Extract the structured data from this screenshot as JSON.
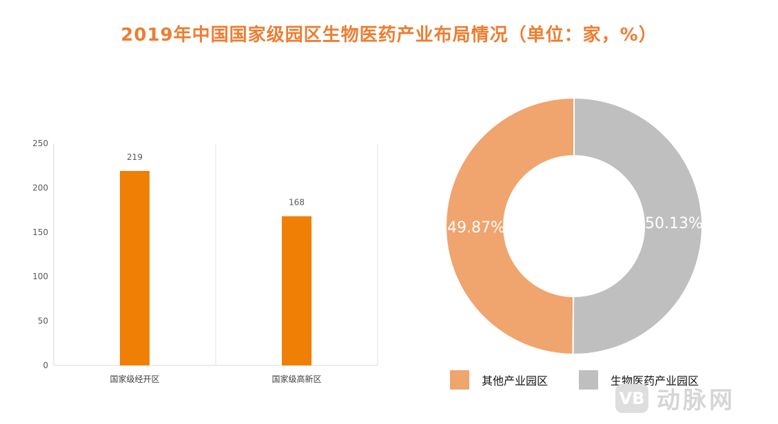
{
  "title": "2019年中国国家级园区生物医药产业布局情况（单位：家，%）",
  "colors": {
    "title": "#ED7D31",
    "bar": "#F07F06",
    "slice_other": "#F0A46E",
    "slice_bio": "#BFBFBF"
  },
  "chart_data": [
    {
      "type": "bar",
      "categories": [
        "国家级经开区",
        "国家级高新区"
      ],
      "values": [
        219,
        168
      ],
      "data_labels": [
        "219",
        "168"
      ],
      "yticks": [
        "0",
        "50",
        "100",
        "150",
        "200",
        "250"
      ],
      "ylim": [
        0,
        250
      ],
      "grid": "vertical separators only"
    },
    {
      "type": "pie",
      "style": "donut",
      "labels": [
        "其他产业园区",
        "生物医药产业园区"
      ],
      "values": [
        49.87,
        50.13
      ],
      "data_labels": [
        "49.87%",
        "50.13%"
      ],
      "legend_position": "bottom"
    }
  ],
  "watermark": {
    "logo": "VB",
    "text": "动脉网"
  }
}
